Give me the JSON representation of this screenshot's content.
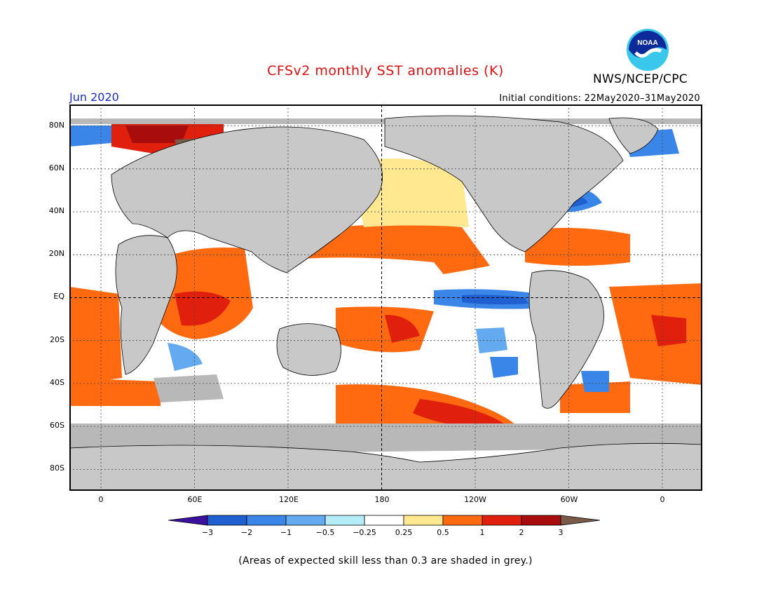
{
  "title": "CFSv2 monthly SST anomalies (K)",
  "month": "Jun 2020",
  "initial_conditions": "Initial conditions: 22May2020–31May2020",
  "agency": "NWS/NCEP/CPC",
  "logo_text": "NOAA",
  "lat_labels": [
    "80N",
    "60N",
    "40N",
    "20N",
    "EQ",
    "20S",
    "40S",
    "60S",
    "80S"
  ],
  "lon_labels": [
    "0",
    "60E",
    "120E",
    "180",
    "120W",
    "60W",
    "0"
  ],
  "colorbar": {
    "labels": [
      "−3",
      "−2",
      "−1",
      "−0.5",
      "−0.25",
      "0.25",
      "0.5",
      "1",
      "2",
      "3"
    ],
    "colors": [
      "#3b0fa0",
      "#1f5fd0",
      "#3a85e8",
      "#64aaf0",
      "#b4ecf8",
      "#ffffff",
      "#ffe890",
      "#ff6a10",
      "#e0200c",
      "#a80c0c",
      "#7a5a48"
    ]
  },
  "colors": {
    "land": "#c8c8c8",
    "noskill": "#b8b8b8",
    "title": "#e01010",
    "month": "#1a2fd0"
  },
  "note": "(Areas of expected skill less than 0.3 are shaded in grey.)"
}
